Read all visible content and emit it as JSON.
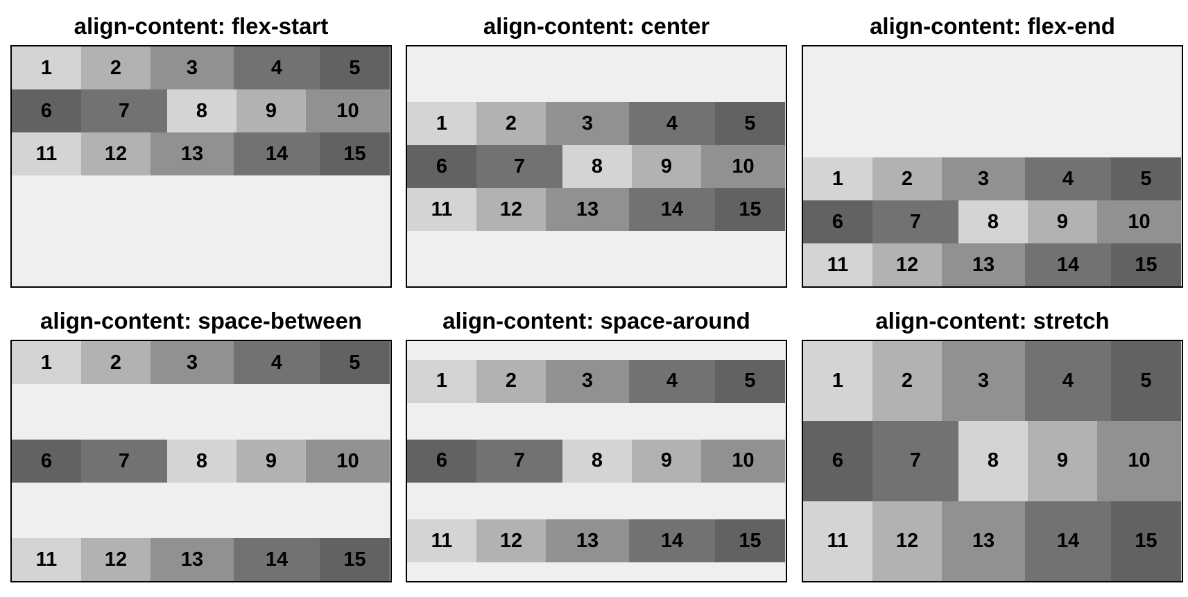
{
  "panels": [
    {
      "title": "align-content: flex-start",
      "align_content": "flex-start"
    },
    {
      "title": "align-content: center",
      "align_content": "center"
    },
    {
      "title": "align-content: flex-end",
      "align_content": "flex-end"
    },
    {
      "title": "align-content: space-between",
      "align_content": "space-between"
    },
    {
      "title": "align-content: space-around",
      "align_content": "space-around"
    },
    {
      "title": "align-content: stretch",
      "align_content": "stretch"
    }
  ],
  "items": [
    {
      "label": "1",
      "color": "#d4d4d4"
    },
    {
      "label": "2",
      "color": "#b2b2b2"
    },
    {
      "label": "3",
      "color": "#919191"
    },
    {
      "label": "4",
      "color": "#727272"
    },
    {
      "label": "5",
      "color": "#626262"
    },
    {
      "label": "6",
      "color": "#626262"
    },
    {
      "label": "7",
      "color": "#727272"
    },
    {
      "label": "8",
      "color": "#d4d4d4"
    },
    {
      "label": "9",
      "color": "#b2b2b2"
    },
    {
      "label": "10",
      "color": "#919191"
    },
    {
      "label": "11",
      "color": "#d4d4d4"
    },
    {
      "label": "12",
      "color": "#b2b2b2"
    },
    {
      "label": "13",
      "color": "#919191"
    },
    {
      "label": "14",
      "color": "#727272"
    },
    {
      "label": "15",
      "color": "#626262"
    }
  ],
  "colors": {
    "container_background": "#efefef",
    "container_border": "#000000"
  }
}
